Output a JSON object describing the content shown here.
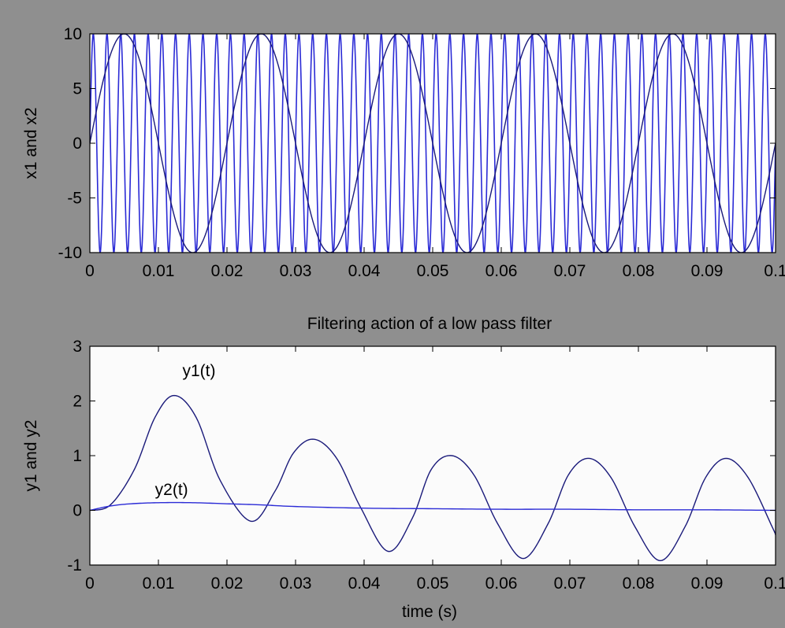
{
  "chart_data": [
    {
      "type": "line",
      "title": "",
      "xlabel": "",
      "ylabel": "x1 and x2",
      "xlim": [
        0,
        0.1
      ],
      "ylim": [
        -10,
        10
      ],
      "xticks": [
        "0",
        "0.01",
        "0.02",
        "0.03",
        "0.04",
        "0.05",
        "0.06",
        "0.07",
        "0.08",
        "0.09",
        "0.1"
      ],
      "yticks": [
        "-10",
        "-5",
        "0",
        "5",
        "10"
      ],
      "grid": false,
      "series": [
        {
          "amplitude": 10,
          "frequency_hz": 50,
          "color": "#1a1a7a",
          "description": "x1 = 10 sin(2π·50·t)"
        },
        {
          "amplitude": 10,
          "frequency_hz": 500,
          "color": "#2b2bd6",
          "description": "x2 = 10 sin(2π·500·t)"
        }
      ]
    },
    {
      "type": "line",
      "title": "Filtering action of a low pass filter",
      "xlabel": "time (s)",
      "ylabel": "y1 and y2",
      "xlim": [
        0,
        0.1
      ],
      "ylim": [
        -1,
        3
      ],
      "xticks": [
        "0",
        "0.01",
        "0.02",
        "0.03",
        "0.04",
        "0.05",
        "0.06",
        "0.07",
        "0.08",
        "0.09",
        "0.1"
      ],
      "yticks": [
        "-1",
        "0",
        "1",
        "2",
        "3"
      ],
      "grid": false,
      "annotations": [
        {
          "text": "y1(t)",
          "x": 0.0135,
          "y": 2.45
        },
        {
          "text": "y2(t)",
          "x": 0.0095,
          "y": 0.28
        }
      ],
      "series": [
        {
          "color": "#1a1a7a",
          "x": [
            0,
            0.003,
            0.0065,
            0.0095,
            0.0123,
            0.0155,
            0.019,
            0.0235,
            0.027,
            0.0297,
            0.0327,
            0.036,
            0.0395,
            0.0435,
            0.047,
            0.0498,
            0.0528,
            0.056,
            0.0595,
            0.0632,
            0.0668,
            0.0698,
            0.0728,
            0.076,
            0.0795,
            0.0832,
            0.0868,
            0.0898,
            0.0928,
            0.096,
            0.0995,
            0.1
          ],
          "values": [
            0,
            0.1,
            0.75,
            1.7,
            2.1,
            1.7,
            0.55,
            -0.2,
            0.35,
            1.05,
            1.3,
            0.95,
            0.05,
            -0.75,
            -0.15,
            0.75,
            1.0,
            0.65,
            -0.25,
            -0.88,
            -0.25,
            0.65,
            0.95,
            0.6,
            -0.3,
            -0.92,
            -0.3,
            0.6,
            0.95,
            0.6,
            -0.3,
            -0.45
          ]
        },
        {
          "color": "#2b2bd6",
          "x": [
            0,
            0.003,
            0.006,
            0.01,
            0.015,
            0.02,
            0.025,
            0.03,
            0.04,
            0.05,
            0.06,
            0.07,
            0.08,
            0.09,
            0.1
          ],
          "values": [
            0,
            0.08,
            0.12,
            0.14,
            0.14,
            0.12,
            0.1,
            0.07,
            0.04,
            0.03,
            0.02,
            0.02,
            0.01,
            0.01,
            0.0
          ]
        }
      ]
    }
  ]
}
